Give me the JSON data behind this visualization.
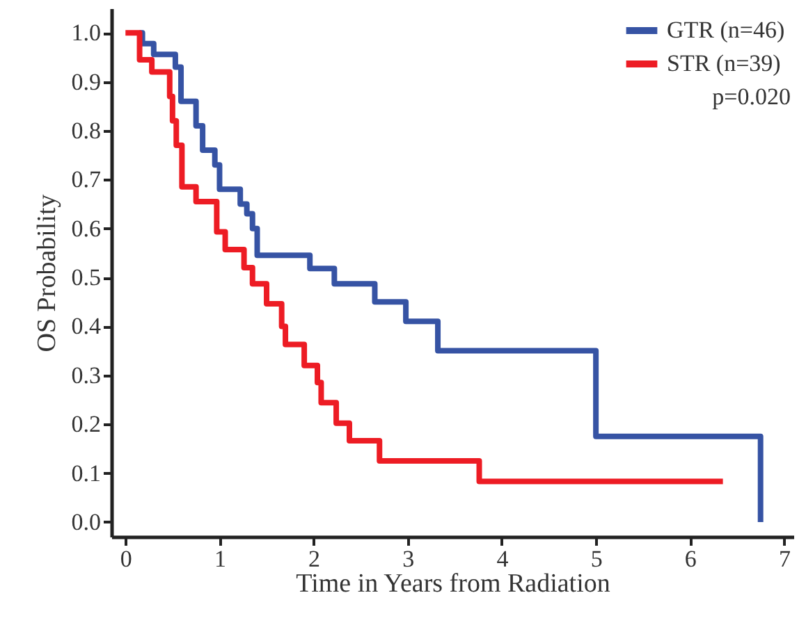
{
  "chart_data": {
    "type": "step",
    "xlabel": "Time in Years from Radiation",
    "ylabel": "OS Probability",
    "xlim": [
      -0.15,
      7.1
    ],
    "xticks": [
      0,
      1,
      2,
      3,
      4,
      5,
      6,
      7
    ],
    "ylim": [
      -0.03,
      1.05
    ],
    "yticks": [
      {
        "value": 0,
        "label": "0.0"
      },
      {
        "value": 0.1,
        "label": "0.1"
      },
      {
        "value": 0.2,
        "label": "0.2"
      },
      {
        "value": 0.3,
        "label": "0.3"
      },
      {
        "value": 0.4,
        "label": "0.4"
      },
      {
        "value": 0.5,
        "label": "0.5"
      },
      {
        "value": 0.6,
        "label": "0.6"
      },
      {
        "value": 0.7,
        "label": "0.7"
      },
      {
        "value": 0.8,
        "label": "0.8"
      },
      {
        "value": 0.9,
        "label": "0.9"
      },
      {
        "value": 1.0,
        "label": "1.0"
      }
    ],
    "grid": false,
    "legend": "top right",
    "line_style": "solid",
    "marker": "none",
    "annotations": [
      "p=0.020"
    ],
    "series": [
      {
        "name": "GTR  (n=46)",
        "color": "#3653a4",
        "x": [
          0.15,
          0.18,
          0.3,
          0.53,
          0.59,
          0.75,
          0.82,
          0.95,
          1.0,
          1.22,
          1.29,
          1.35,
          1.4,
          1.96,
          2.22,
          2.65,
          2.98,
          3.32,
          5.0,
          6.75,
          6.75
        ],
        "values": [
          1.0,
          0.978,
          0.956,
          0.93,
          0.86,
          0.81,
          0.76,
          0.73,
          0.68,
          0.65,
          0.63,
          0.6,
          0.545,
          0.518,
          0.487,
          0.45,
          0.41,
          0.35,
          0.175,
          0.0,
          0.0
        ]
      },
      {
        "name": "STR  (n=39)",
        "color": "#ed1c24",
        "x": [
          0.0,
          0.15,
          0.28,
          0.47,
          0.5,
          0.54,
          0.6,
          0.75,
          0.97,
          1.06,
          1.26,
          1.35,
          1.5,
          1.66,
          1.7,
          1.9,
          2.04,
          2.08,
          2.24,
          2.38,
          2.7,
          3.76,
          6.35
        ],
        "values": [
          1.0,
          0.945,
          0.92,
          0.87,
          0.82,
          0.77,
          0.685,
          0.655,
          0.593,
          0.557,
          0.52,
          0.487,
          0.446,
          0.4,
          0.363,
          0.32,
          0.285,
          0.244,
          0.202,
          0.166,
          0.125,
          0.083,
          0.083
        ]
      }
    ]
  }
}
